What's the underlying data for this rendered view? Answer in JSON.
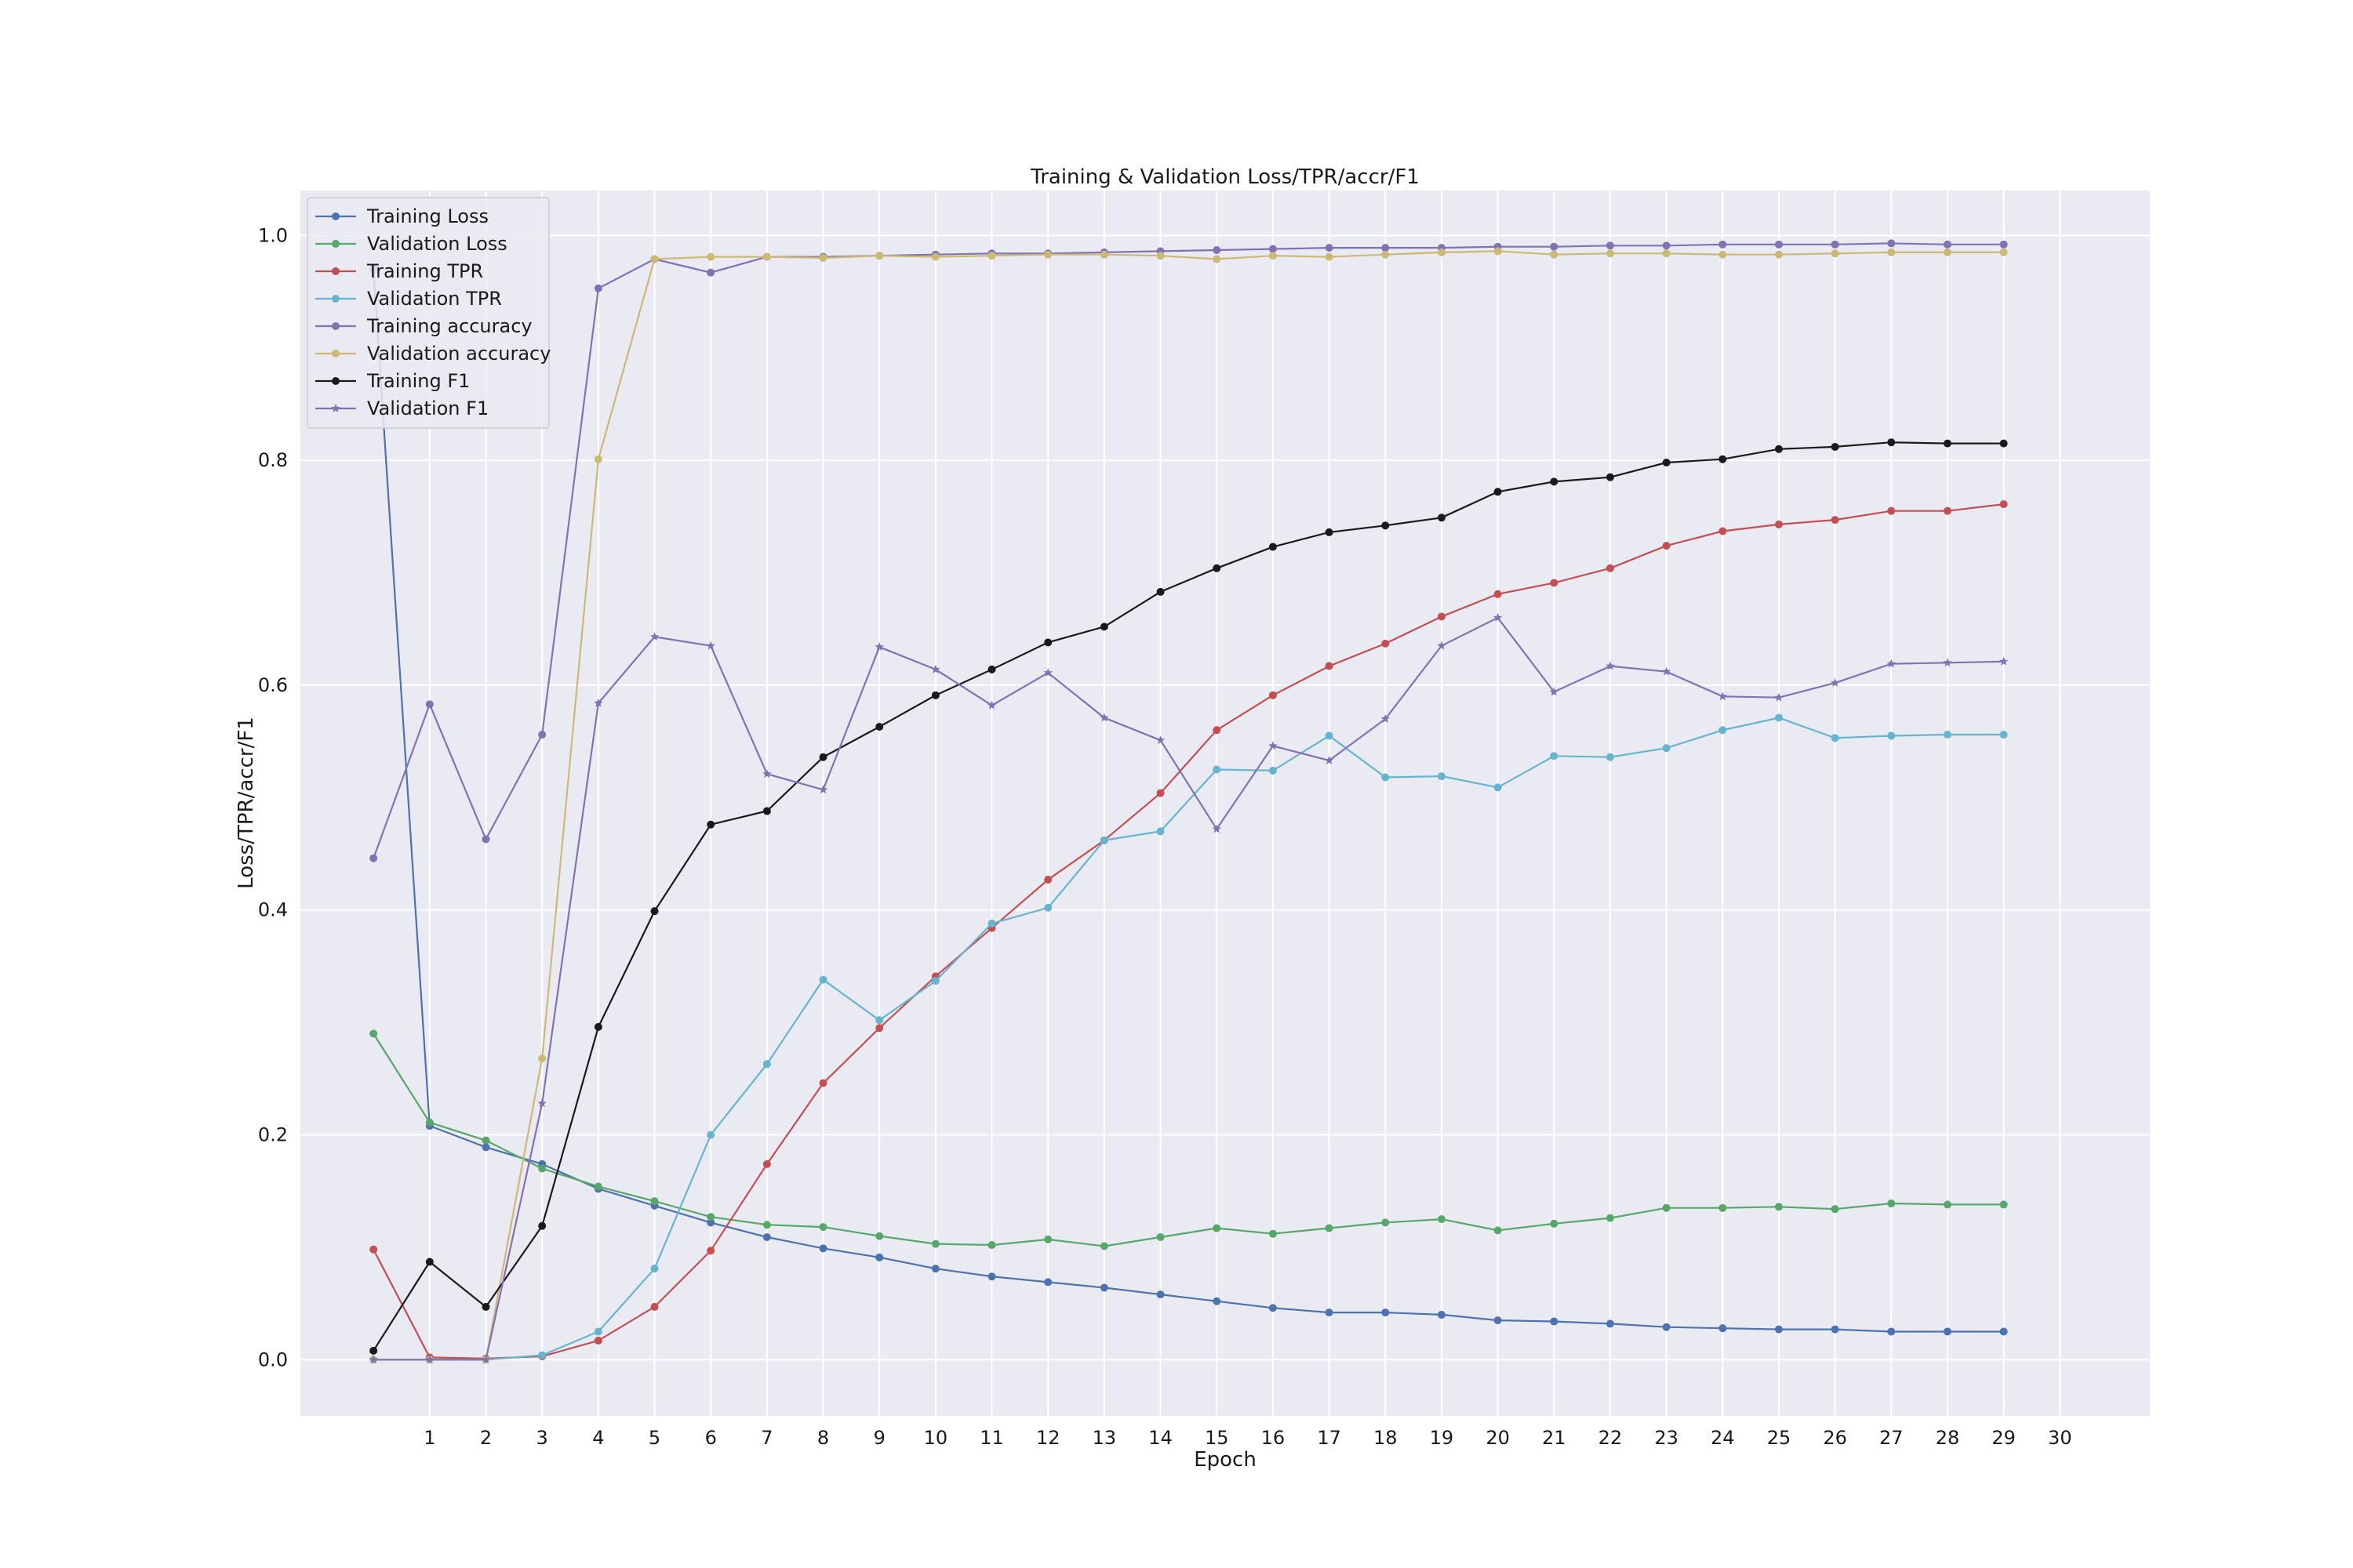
{
  "chart_data": {
    "type": "line",
    "title": "Training & Validation Loss/TPR/accr/F1",
    "xlabel": "Epoch",
    "ylabel": "Loss/TPR/accr/F1",
    "xlim": [
      -1.3,
      31.6
    ],
    "ylim": [
      -0.05,
      1.04
    ],
    "xticks": [
      1,
      2,
      3,
      4,
      5,
      6,
      7,
      8,
      9,
      10,
      11,
      12,
      13,
      14,
      15,
      16,
      17,
      18,
      19,
      20,
      21,
      22,
      23,
      24,
      25,
      26,
      27,
      28,
      29,
      30
    ],
    "yticks": [
      0.0,
      0.2,
      0.4,
      0.6,
      0.8,
      1.0
    ],
    "ytick_labels": [
      "0.0",
      "0.2",
      "0.4",
      "0.6",
      "0.8",
      "1.0"
    ],
    "grid": true,
    "legend_position": "upper-left",
    "x": [
      0,
      1,
      2,
      3,
      4,
      5,
      6,
      7,
      8,
      9,
      10,
      11,
      12,
      13,
      14,
      15,
      16,
      17,
      18,
      19,
      20,
      21,
      22,
      23,
      24,
      25,
      26,
      27,
      28,
      29
    ],
    "series": [
      {
        "name": "Training Loss",
        "color": "#4c72b0",
        "marker": "circle",
        "values": [
          0.97,
          0.208,
          0.189,
          0.174,
          0.152,
          0.137,
          0.122,
          0.109,
          0.099,
          0.091,
          0.081,
          0.074,
          0.069,
          0.064,
          0.058,
          0.052,
          0.046,
          0.042,
          0.042,
          0.04,
          0.035,
          0.034,
          0.032,
          0.029,
          0.028,
          0.027,
          0.027,
          0.025,
          0.025,
          0.025
        ]
      },
      {
        "name": "Validation Loss",
        "color": "#55a868",
        "marker": "circle",
        "values": [
          0.29,
          0.211,
          0.195,
          0.17,
          0.154,
          0.141,
          0.127,
          0.12,
          0.118,
          0.11,
          0.103,
          0.102,
          0.107,
          0.101,
          0.109,
          0.117,
          0.112,
          0.117,
          0.122,
          0.125,
          0.115,
          0.121,
          0.126,
          0.135,
          0.135,
          0.136,
          0.134,
          0.139,
          0.138,
          0.138
        ]
      },
      {
        "name": "Training TPR",
        "color": "#c44e52",
        "marker": "circle",
        "values": [
          0.098,
          0.002,
          0.001,
          0.003,
          0.017,
          0.047,
          0.097,
          0.174,
          0.246,
          0.295,
          0.341,
          0.384,
          0.427,
          0.462,
          0.504,
          0.56,
          0.591,
          0.617,
          0.637,
          0.661,
          0.681,
          0.691,
          0.704,
          0.724,
          0.737,
          0.743,
          0.747,
          0.755,
          0.755,
          0.761
        ]
      },
      {
        "name": "Validation TPR",
        "color": "#64b5cd",
        "marker": "circle",
        "values": [
          0.0,
          0.0,
          0.0,
          0.004,
          0.025,
          0.081,
          0.2,
          0.263,
          0.338,
          0.302,
          0.337,
          0.388,
          0.402,
          0.462,
          0.47,
          0.525,
          0.524,
          0.555,
          0.518,
          0.519,
          0.509,
          0.537,
          0.536,
          0.544,
          0.56,
          0.571,
          0.553,
          0.555,
          0.556,
          0.556
        ]
      },
      {
        "name": "Training accuracy",
        "color": "#8172b3",
        "marker": "circle",
        "values": [
          0.446,
          0.583,
          0.463,
          0.556,
          0.953,
          0.979,
          0.967,
          0.981,
          0.981,
          0.982,
          0.983,
          0.984,
          0.984,
          0.985,
          0.986,
          0.987,
          0.988,
          0.989,
          0.989,
          0.989,
          0.99,
          0.99,
          0.991,
          0.991,
          0.992,
          0.992,
          0.992,
          0.993,
          0.992,
          0.992
        ]
      },
      {
        "name": "Validation accuracy",
        "color": "#ccb974",
        "marker": "circle",
        "values": [
          0.0,
          0.0,
          0.0,
          0.268,
          0.801,
          0.979,
          0.981,
          0.981,
          0.98,
          0.982,
          0.981,
          0.982,
          0.983,
          0.983,
          0.982,
          0.979,
          0.982,
          0.981,
          0.983,
          0.985,
          0.986,
          0.983,
          0.984,
          0.984,
          0.983,
          0.983,
          0.984,
          0.985,
          0.985,
          0.985
        ]
      },
      {
        "name": "Training F1",
        "color": "#1a1a1a",
        "marker": "circle",
        "values": [
          0.008,
          0.087,
          0.047,
          0.119,
          0.296,
          0.399,
          0.476,
          0.488,
          0.536,
          0.563,
          0.591,
          0.614,
          0.638,
          0.652,
          0.683,
          0.704,
          0.723,
          0.736,
          0.742,
          0.749,
          0.772,
          0.781,
          0.785,
          0.798,
          0.801,
          0.81,
          0.812,
          0.816,
          0.815,
          0.815
        ]
      },
      {
        "name": "Validation F1",
        "color": "#8172b3",
        "marker": "star",
        "values": [
          0.0,
          0.0,
          0.0,
          0.228,
          0.584,
          0.643,
          0.635,
          0.521,
          0.507,
          0.634,
          0.614,
          0.582,
          0.611,
          0.571,
          0.551,
          0.472,
          0.546,
          0.533,
          0.57,
          0.635,
          0.66,
          0.594,
          0.617,
          0.612,
          0.59,
          0.589,
          0.602,
          0.619,
          0.62,
          0.621
        ]
      }
    ]
  }
}
